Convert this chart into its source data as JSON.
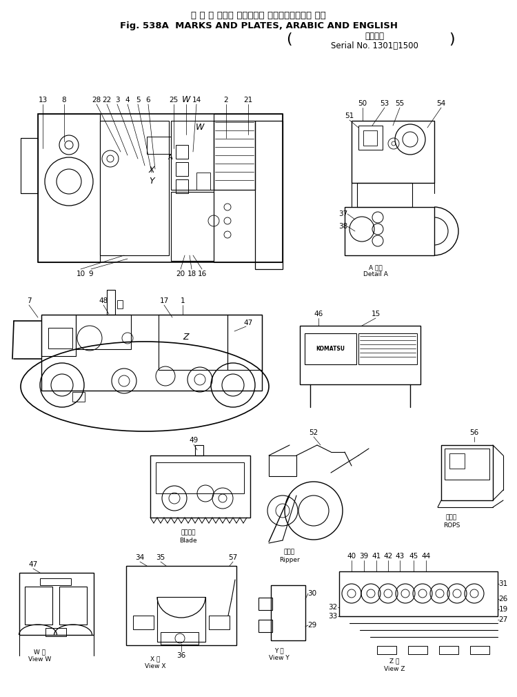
{
  "title_line1": "マ ー ク および プレート， アラビア語および 英語",
  "title_line2": "Fig. 538A  MARKS AND PLATES, ARABIC AND ENGLISH",
  "title_line3": "適用号機",
  "title_line4": "Serial No. 1301～1500",
  "bg_color": "#ffffff",
  "text_color": "#000000",
  "line_color": "#000000",
  "label_fontsize": 7.5,
  "title_fontsize1": 9.5,
  "title_fontsize2": 9.5
}
